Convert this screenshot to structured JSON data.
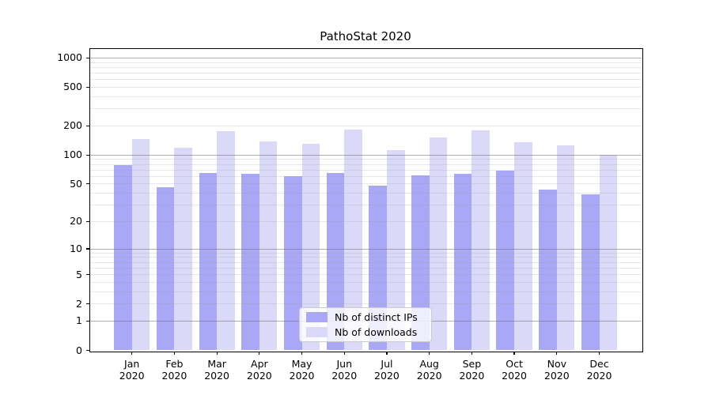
{
  "title": "PathoStat 2020",
  "chart_data": {
    "type": "bar",
    "title": "PathoStat 2020",
    "categories": [
      "Jan 2020",
      "Feb 2020",
      "Mar 2020",
      "Apr 2020",
      "May 2020",
      "Jun 2020",
      "Jul 2020",
      "Aug 2020",
      "Sep 2020",
      "Oct 2020",
      "Nov 2020",
      "Dec 2020"
    ],
    "x_tick_months": [
      "Jan",
      "Feb",
      "Mar",
      "Apr",
      "May",
      "Jun",
      "Jul",
      "Aug",
      "Sep",
      "Oct",
      "Nov",
      "Dec"
    ],
    "x_tick_year": "2020",
    "series": [
      {
        "name": "Nb of distinct IPs",
        "color": "#a8a8f6",
        "values": [
          78,
          46,
          65,
          64,
          60,
          65,
          48,
          62,
          64,
          69,
          44,
          39
        ]
      },
      {
        "name": "Nb of downloads",
        "color": "#dadaf8",
        "values": [
          146,
          119,
          177,
          138,
          131,
          183,
          112,
          152,
          181,
          136,
          126,
          101
        ]
      }
    ],
    "xlabel": "",
    "ylabel": "",
    "yscale": "log1p",
    "ylim": [
      0,
      1260
    ],
    "yticks": [
      0,
      1,
      2,
      5,
      10,
      20,
      50,
      100,
      200,
      500,
      1000
    ],
    "grid": {
      "major_values": [
        1,
        10,
        100,
        1000
      ],
      "minor_values": [
        2,
        3,
        4,
        5,
        6,
        7,
        8,
        9,
        20,
        30,
        40,
        50,
        60,
        70,
        80,
        90,
        200,
        300,
        400,
        500,
        600,
        700,
        800,
        900
      ],
      "drawn_above_bars": true
    },
    "legend_position": "lower center inside axes"
  }
}
